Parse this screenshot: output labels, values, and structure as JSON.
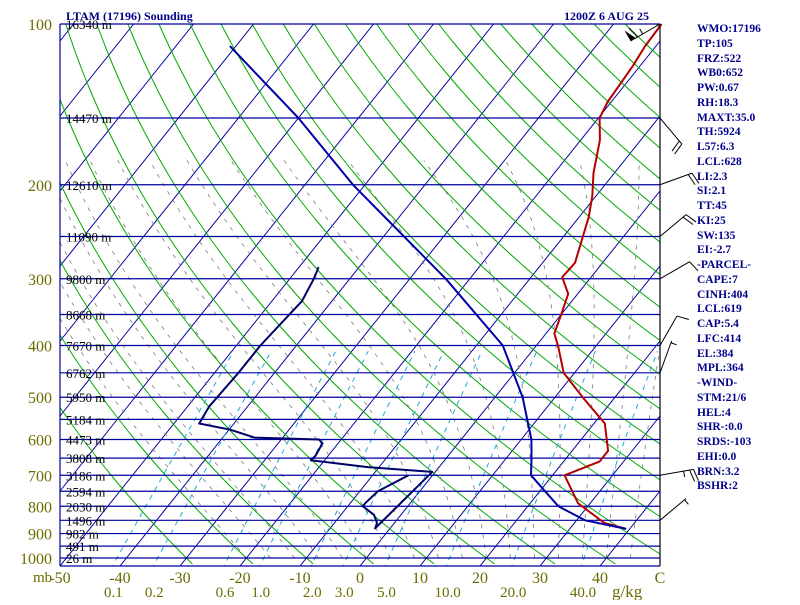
{
  "chart_data": {
    "type": "line",
    "title": "LTAM (17196) Sounding",
    "datetime": "1200Z  6 AUG 25",
    "pressure_axis": {
      "unit": "mb",
      "range": [
        1000,
        100
      ],
      "ticks": [
        {
          "value": 100,
          "label": "100"
        },
        {
          "value": 200,
          "label": "200"
        },
        {
          "value": 300,
          "label": "300"
        },
        {
          "value": 400,
          "label": "400"
        },
        {
          "value": 500,
          "label": "500"
        },
        {
          "value": 600,
          "label": "600"
        },
        {
          "value": 700,
          "label": "700"
        },
        {
          "value": 800,
          "label": "800"
        },
        {
          "value": 900,
          "label": "900"
        },
        {
          "value": 1000,
          "label": "1000"
        }
      ]
    },
    "temperature_axis": {
      "unit": "C",
      "range": [
        -50,
        50
      ],
      "ticks": [
        {
          "value": -50,
          "label": "-50"
        },
        {
          "value": -40,
          "label": "-40"
        },
        {
          "value": -30,
          "label": "-30"
        },
        {
          "value": -20,
          "label": "-20"
        },
        {
          "value": -10,
          "label": "-10"
        },
        {
          "value": 0,
          "label": "0"
        },
        {
          "value": 10,
          "label": "10"
        },
        {
          "value": 20,
          "label": "20"
        },
        {
          "value": 30,
          "label": "30"
        },
        {
          "value": 40,
          "label": "40"
        },
        {
          "value": 50,
          "label": "C"
        }
      ]
    },
    "mixing_ratio_axis": {
      "unit": "g/kg",
      "ticks": [
        {
          "value": 0.1,
          "label": "0.1"
        },
        {
          "value": 0.2,
          "label": "0.2"
        },
        {
          "value": 0.6,
          "label": "0.6"
        },
        {
          "value": 1.0,
          "label": "1.0"
        },
        {
          "value": 2.0,
          "label": "2.0"
        },
        {
          "value": 3.0,
          "label": "3.0"
        },
        {
          "value": 5.0,
          "label": "5.0"
        },
        {
          "value": 10.0,
          "label": "10.0"
        },
        {
          "value": 20.0,
          "label": "20.0"
        },
        {
          "value": 40.0,
          "label": "40.0"
        }
      ]
    },
    "height_labels": [
      {
        "pressure": 100,
        "label": "16340 m"
      },
      {
        "pressure": 150,
        "label": "14470 m"
      },
      {
        "pressure": 200,
        "label": "12610 m"
      },
      {
        "pressure": 250,
        "label": "11090 m"
      },
      {
        "pressure": 300,
        "label": "9800 m"
      },
      {
        "pressure": 350,
        "label": "8668 m"
      },
      {
        "pressure": 400,
        "label": "7670 m"
      },
      {
        "pressure": 450,
        "label": "6762 m"
      },
      {
        "pressure": 500,
        "label": "5950 m"
      },
      {
        "pressure": 550,
        "label": "5184 m"
      },
      {
        "pressure": 600,
        "label": "4473 m"
      },
      {
        "pressure": 650,
        "label": "3808 m"
      },
      {
        "pressure": 700,
        "label": "3186 m"
      },
      {
        "pressure": 750,
        "label": "2594 m"
      },
      {
        "pressure": 800,
        "label": "2030 m"
      },
      {
        "pressure": 850,
        "label": "1496 m"
      },
      {
        "pressure": 900,
        "label": "982 m"
      },
      {
        "pressure": 950,
        "label": "491 m"
      },
      {
        "pressure": 1000,
        "label": "26 m"
      }
    ],
    "series": [
      {
        "key": "temperature",
        "color": "#b40000",
        "points": [
          [
            882,
            39.4
          ],
          [
            860,
            35.0
          ],
          [
            790,
            28.0
          ],
          [
            700,
            22.0
          ],
          [
            660,
            26.0
          ],
          [
            630,
            26.0
          ],
          [
            560,
            21.8
          ],
          [
            500,
            14.6
          ],
          [
            450,
            8.2
          ],
          [
            400,
            3.6
          ],
          [
            380,
            1.4
          ],
          [
            350,
            0.0
          ],
          [
            320,
            -1.6
          ],
          [
            298,
            -4.8
          ],
          [
            280,
            -4.6
          ],
          [
            255,
            -6.4
          ],
          [
            230,
            -8.4
          ],
          [
            210,
            -10.6
          ],
          [
            190,
            -13.5
          ],
          [
            165,
            -16.8
          ],
          [
            150,
            -19.8
          ],
          [
            140,
            -20.6
          ],
          [
            120,
            -21.2
          ],
          [
            110,
            -21.8
          ],
          [
            100,
            -22.0
          ]
        ]
      },
      {
        "key": "dewpoint",
        "color": "#00006b",
        "points": [
          [
            700,
            -4.0
          ],
          [
            750,
            -7.0
          ],
          [
            790,
            -7.5
          ],
          [
            800,
            -7.5
          ],
          [
            830,
            -4.5
          ],
          [
            860,
            -2.9
          ],
          [
            880,
            -2.5
          ],
          [
            690,
            -0.5
          ],
          [
            676,
            -11.7
          ],
          [
            656,
            -22.3
          ],
          [
            644,
            -22.1
          ],
          [
            610,
            -22.6
          ],
          [
            600,
            -23.7
          ],
          [
            595,
            -34.7
          ],
          [
            575,
            -39.8
          ],
          [
            560,
            -45.8
          ],
          [
            520,
            -46.4
          ],
          [
            450,
            -46.0
          ],
          [
            400,
            -46.0
          ],
          [
            330,
            -45.0
          ],
          [
            300,
            -46.0
          ],
          [
            290,
            -46.5
          ],
          [
            285,
            -46.8
          ]
        ]
      },
      {
        "key": "parcel",
        "color": "#0000a8",
        "points": [
          [
            882,
            39.4
          ],
          [
            850,
            31.4
          ],
          [
            800,
            25.1
          ],
          [
            700,
            16.4
          ],
          [
            650,
            14.2
          ],
          [
            600,
            11.7
          ],
          [
            500,
            4.6
          ],
          [
            400,
            -5.6
          ],
          [
            300,
            -24.0
          ],
          [
            200,
            -52.0
          ],
          [
            150,
            -70.0
          ],
          [
            110,
            -91.0
          ]
        ]
      }
    ],
    "wind_barbs": [
      {
        "pressure": 100,
        "direction": 240,
        "speed": 65
      },
      {
        "pressure": 150,
        "direction": 140,
        "speed": 20
      },
      {
        "pressure": 200,
        "direction": 70,
        "speed": 20
      },
      {
        "pressure": 250,
        "direction": 50,
        "speed": 20
      },
      {
        "pressure": 300,
        "direction": 60,
        "speed": 10
      },
      {
        "pressure": 400,
        "direction": 30,
        "speed": 10
      },
      {
        "pressure": 450,
        "direction": 20,
        "speed": 5
      },
      {
        "pressure": 700,
        "direction": 80,
        "speed": 25
      },
      {
        "pressure": 850,
        "direction": 50,
        "speed": 5
      }
    ]
  },
  "stats": [
    "WMO:17196",
    "TP:105",
    "FRZ:522",
    "WB0:652",
    "PW:0.67",
    "RH:18.3",
    "MAXT:35.0",
    "TH:5924",
    "L57:6.3",
    "LCL:628",
    "LI:2.3",
    "SI:2.1",
    "TT:45",
    "KI:25",
    "SW:135",
    "EI:-2.7",
    "-PARCEL-",
    "CAPE:7",
    "CINH:404",
    "LCL:619",
    "CAP:5.4",
    "LFC:414",
    "EL:384",
    "MPL:364",
    "-WIND-",
    "STM:21/6",
    "HEL:4",
    "SHR-:0.0",
    "SRDS:-103",
    "EHI:0.0",
    "BRN:3.2",
    "BSHR:2"
  ],
  "colors": {
    "isobar": "#0000a0",
    "dry_adiabat": "#00a800",
    "moist_adiabat": "#7a7a7a",
    "mixing_ratio": "#20a8d8",
    "axis_text": "#6b6b00",
    "header_text": "#00008b",
    "height_text": "#000000"
  }
}
